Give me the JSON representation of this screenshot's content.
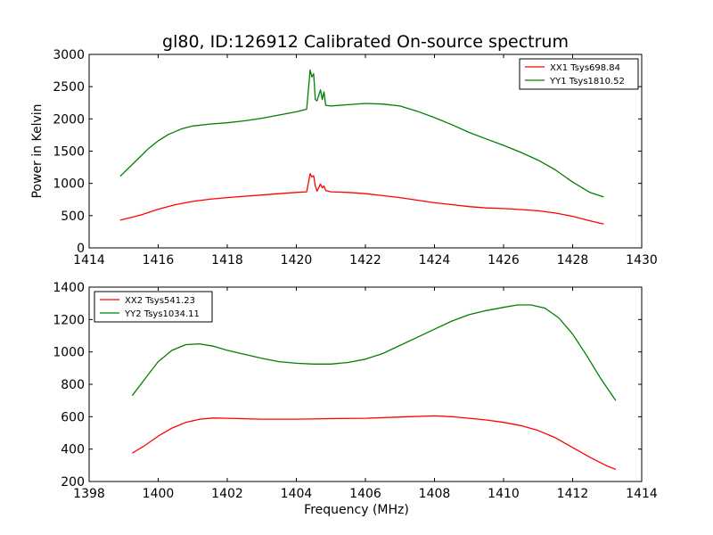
{
  "figure": {
    "title": "gl80, ID:126912 Calibrated On-source spectrum"
  },
  "chart_data": [
    {
      "type": "line",
      "title": "gl80, ID:126912 Calibrated On-source spectrum",
      "xlabel": "",
      "ylabel": "Power in Kelvin",
      "xlim": [
        1414,
        1430
      ],
      "ylim": [
        0,
        3000
      ],
      "xticks": [
        1414,
        1416,
        1418,
        1420,
        1422,
        1424,
        1426,
        1428,
        1430
      ],
      "yticks": [
        0,
        500,
        1000,
        1500,
        2000,
        2500,
        3000
      ],
      "grid": false,
      "legend_position": "top-right",
      "series": [
        {
          "name": "XX1 Tsys698.84",
          "color": "#ff0000",
          "x": [
            1414.9,
            1415.5,
            1416.0,
            1416.5,
            1417.0,
            1417.5,
            1418.0,
            1418.5,
            1419.0,
            1419.5,
            1420.0,
            1420.3,
            1420.4,
            1420.45,
            1420.5,
            1420.55,
            1420.6,
            1420.7,
            1420.75,
            1420.8,
            1420.85,
            1421.0,
            1421.5,
            1422.0,
            1422.5,
            1423.0,
            1423.5,
            1424.0,
            1424.5,
            1425.0,
            1425.5,
            1426.0,
            1426.5,
            1427.0,
            1427.5,
            1428.0,
            1428.5,
            1428.9
          ],
          "y": [
            430,
            510,
            600,
            670,
            720,
            755,
            780,
            800,
            820,
            840,
            860,
            870,
            1150,
            1100,
            1120,
            960,
            880,
            990,
            930,
            960,
            890,
            870,
            860,
            840,
            810,
            780,
            740,
            700,
            670,
            640,
            620,
            610,
            595,
            575,
            540,
            490,
            420,
            370
          ]
        },
        {
          "name": "YY1 Tsys1810.52",
          "color": "#008000",
          "x": [
            1414.9,
            1415.3,
            1415.7,
            1416.0,
            1416.3,
            1416.7,
            1417.0,
            1417.5,
            1418.0,
            1418.5,
            1419.0,
            1419.5,
            1420.0,
            1420.3,
            1420.4,
            1420.45,
            1420.5,
            1420.55,
            1420.6,
            1420.7,
            1420.75,
            1420.8,
            1420.85,
            1421.0,
            1421.5,
            1422.0,
            1422.5,
            1423.0,
            1423.5,
            1424.0,
            1424.5,
            1425.0,
            1425.5,
            1426.0,
            1426.5,
            1427.0,
            1427.5,
            1428.0,
            1428.5,
            1428.9
          ],
          "y": [
            1110,
            1320,
            1530,
            1660,
            1760,
            1850,
            1890,
            1920,
            1940,
            1970,
            2010,
            2060,
            2110,
            2150,
            2760,
            2650,
            2700,
            2300,
            2280,
            2450,
            2300,
            2420,
            2210,
            2200,
            2220,
            2240,
            2230,
            2200,
            2120,
            2020,
            1910,
            1790,
            1690,
            1590,
            1480,
            1360,
            1210,
            1020,
            860,
            790
          ]
        }
      ]
    },
    {
      "type": "line",
      "title": "",
      "xlabel": "Frequency (MHz)",
      "ylabel": "",
      "xlim": [
        1398,
        1414
      ],
      "ylim": [
        200,
        1400
      ],
      "xticks": [
        1398,
        1400,
        1402,
        1404,
        1406,
        1408,
        1410,
        1412,
        1414
      ],
      "yticks": [
        200,
        400,
        600,
        800,
        1000,
        1200,
        1400
      ],
      "grid": false,
      "legend_position": "top-left",
      "series": [
        {
          "name": "XX2 Tsys541.23",
          "color": "#ff0000",
          "x": [
            1399.25,
            1399.6,
            1400.0,
            1400.4,
            1400.8,
            1401.2,
            1401.6,
            1402.0,
            1403.0,
            1404.0,
            1405.0,
            1406.0,
            1407.0,
            1408.0,
            1408.5,
            1409.0,
            1409.5,
            1410.0,
            1410.5,
            1411.0,
            1411.5,
            1412.0,
            1412.5,
            1413.0,
            1413.25
          ],
          "y": [
            375,
            420,
            480,
            530,
            565,
            585,
            592,
            590,
            585,
            585,
            588,
            590,
            598,
            605,
            600,
            590,
            580,
            565,
            545,
            515,
            470,
            410,
            350,
            295,
            275
          ]
        },
        {
          "name": "YY2 Tsys1034.11",
          "color": "#008000",
          "x": [
            1399.25,
            1399.6,
            1400.0,
            1400.4,
            1400.8,
            1401.2,
            1401.6,
            1402.0,
            1402.5,
            1403.0,
            1403.5,
            1404.0,
            1404.5,
            1405.0,
            1405.5,
            1406.0,
            1406.5,
            1407.0,
            1407.5,
            1408.0,
            1408.5,
            1409.0,
            1409.5,
            1410.0,
            1410.4,
            1410.8,
            1411.2,
            1411.6,
            1412.0,
            1412.4,
            1412.8,
            1413.25
          ],
          "y": [
            730,
            830,
            940,
            1010,
            1045,
            1050,
            1035,
            1010,
            985,
            960,
            940,
            930,
            925,
            925,
            935,
            955,
            990,
            1040,
            1090,
            1140,
            1190,
            1230,
            1255,
            1275,
            1290,
            1290,
            1270,
            1210,
            1110,
            980,
            840,
            700
          ]
        }
      ]
    }
  ]
}
